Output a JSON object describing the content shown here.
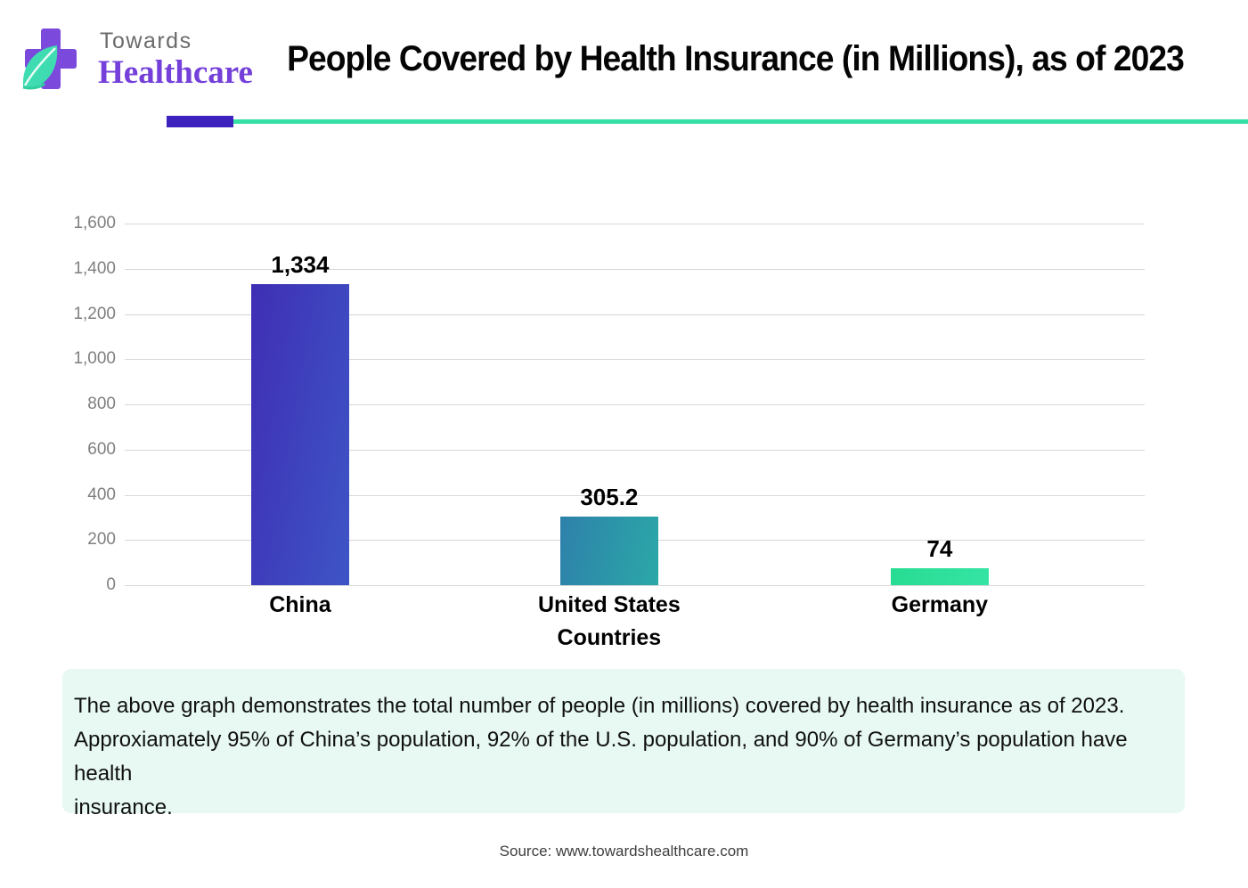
{
  "header": {
    "logo_line1": "Towards",
    "logo_line2": "Healthcare",
    "title": "People Covered by Health Insurance (in Millions), as of 2023"
  },
  "divider": {
    "accent_color": "#3e22bd",
    "line_color": "#36dfa5"
  },
  "chart_data": {
    "type": "bar",
    "categories": [
      "China",
      "United States",
      "Germany"
    ],
    "values": [
      1334,
      305.2,
      74
    ],
    "value_labels": [
      "1,334",
      "305.2",
      "74"
    ],
    "title": "People Covered by Health Insurance (in Millions), as of 2023",
    "xlabel": "Countries",
    "ylabel": "",
    "ylim": [
      0,
      1600
    ],
    "ytick_step": 200,
    "grid": true,
    "legend": "none",
    "bar_colors": [
      {
        "from": "#3f2eb4",
        "to": "#3e55c6"
      },
      {
        "from": "#2e81aa",
        "to": "#2ba8a8"
      },
      {
        "from": "#28dc93",
        "to": "#35e4a3"
      }
    ],
    "tick_color": "#7f7f7f",
    "gridline_color": "#d8d8d8"
  },
  "note": {
    "lines": [
      "The above graph demonstrates the total number of people (in millions) covered by health insurance as of 2023.",
      "Approxiamately 95% of China’s population, 92% of the U.S. population, and 90% of Germany’s population have health",
      "insurance."
    ]
  },
  "source": {
    "text": "Source: www.towardshealthcare.com"
  }
}
